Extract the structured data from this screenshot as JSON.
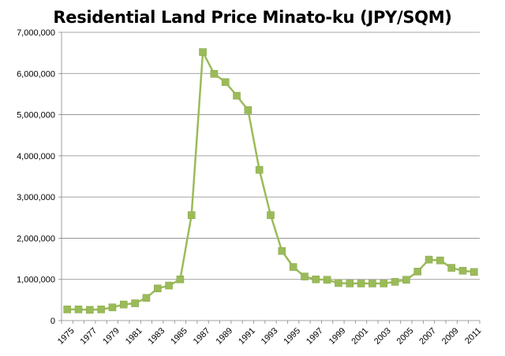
{
  "chart_data": {
    "type": "line",
    "title": "Residential Land Price Minato-ku (JPY/SQM)",
    "xlabel": "",
    "ylabel": "",
    "ylim": [
      0,
      7000000
    ],
    "y_ticks": [
      0,
      1000000,
      2000000,
      3000000,
      4000000,
      5000000,
      6000000,
      7000000
    ],
    "y_tick_labels": [
      "0",
      "1,000,000",
      "2,000,000",
      "3,000,000",
      "4,000,000",
      "5,000,000",
      "6,000,000",
      "7,000,000"
    ],
    "x_tick_labels": [
      "1975",
      "1977",
      "1979",
      "1981",
      "1983",
      "1985",
      "1987",
      "1989",
      "1991",
      "1993",
      "1995",
      "1997",
      "1999",
      "2001",
      "2003",
      "2005",
      "2007",
      "2009",
      "2011"
    ],
    "grid": "horizontal",
    "legend": "none",
    "series": [
      {
        "color": "#9bbb59",
        "marker": "square",
        "x": [
          1975,
          1976,
          1977,
          1978,
          1979,
          1980,
          1981,
          1982,
          1983,
          1984,
          1985,
          1986,
          1987,
          1988,
          1989,
          1990,
          1991,
          1992,
          1993,
          1994,
          1995,
          1996,
          1997,
          1998,
          1999,
          2000,
          2001,
          2002,
          2003,
          2004,
          2005,
          2006,
          2007,
          2008,
          2009,
          2010,
          2011
        ],
        "values": [
          270000,
          270000,
          260000,
          270000,
          320000,
          390000,
          420000,
          550000,
          780000,
          850000,
          1000000,
          2560000,
          6520000,
          5990000,
          5790000,
          5460000,
          5110000,
          3660000,
          2560000,
          1690000,
          1300000,
          1070000,
          1000000,
          990000,
          910000,
          900000,
          900000,
          900000,
          900000,
          940000,
          990000,
          1190000,
          1480000,
          1460000,
          1280000,
          1210000,
          1180000
        ]
      }
    ]
  }
}
